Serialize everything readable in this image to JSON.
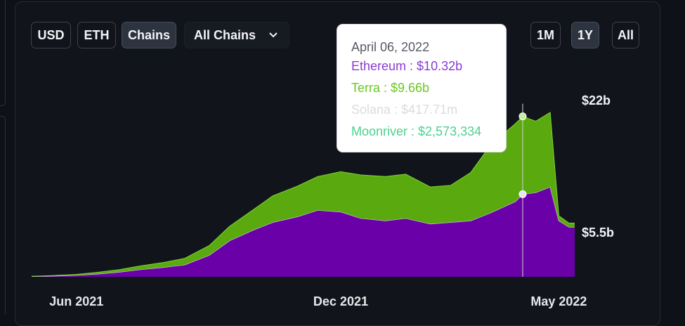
{
  "controls": {
    "currency_buttons": [
      "USD",
      "ETH",
      "Chains"
    ],
    "active_currency": "Chains",
    "chain_select": "All Chains",
    "range_buttons": [
      "1M",
      "1Y",
      "All"
    ],
    "active_range": "1Y"
  },
  "tooltip": {
    "date": "April 06, 2022",
    "lines": [
      {
        "series": "Ethereum",
        "text": "Ethereum : $10.32b",
        "color": "#8a3bd1"
      },
      {
        "series": "Terra",
        "text": "Terra : $9.66b",
        "color": "#6cc623"
      },
      {
        "series": "Solana",
        "text": "Solana : $417.71m",
        "color": "#dcdcdc"
      },
      {
        "series": "Moonriver",
        "text": "Moonriver : $2,573,334",
        "color": "#4dd18e"
      }
    ]
  },
  "chart_data": {
    "type": "area",
    "stacked": true,
    "x_tick_labels": [
      "Jun 2021",
      "Dec 2021",
      "May 2022"
    ],
    "y_tick_labels": [
      "$22b",
      "$5.5b"
    ],
    "y_axis_side": "right",
    "grid": false,
    "hover_date": "2022-04-06",
    "colors": {
      "Ethereum": "#6a00a8",
      "Terra": "#5aaa0f"
    },
    "x": [
      "2021-05-01",
      "2021-05-15",
      "2021-06-01",
      "2021-06-15",
      "2021-07-01",
      "2021-07-15",
      "2021-08-01",
      "2021-08-15",
      "2021-09-01",
      "2021-09-15",
      "2021-10-01",
      "2021-10-15",
      "2021-11-01",
      "2021-11-15",
      "2021-12-01",
      "2021-12-15",
      "2022-01-01",
      "2022-01-15",
      "2022-02-01",
      "2022-02-15",
      "2022-03-01",
      "2022-03-15",
      "2022-04-01",
      "2022-04-06",
      "2022-04-15",
      "2022-04-25",
      "2022-05-01",
      "2022-05-08",
      "2022-05-12"
    ],
    "series": [
      {
        "name": "Ethereum",
        "values": [
          0.05,
          0.1,
          0.2,
          0.35,
          0.6,
          0.9,
          1.2,
          1.5,
          2.7,
          4.5,
          5.8,
          6.8,
          7.5,
          8.3,
          8.1,
          7.3,
          7.0,
          7.3,
          6.6,
          6.8,
          7.0,
          8.0,
          9.4,
          10.3,
          10.5,
          11.2,
          7.0,
          6.2,
          6.2
        ]
      },
      {
        "name": "Terra",
        "values": [
          0.02,
          0.05,
          0.1,
          0.2,
          0.3,
          0.45,
          0.6,
          0.8,
          1.2,
          1.8,
          2.5,
          3.3,
          3.8,
          4.2,
          5.0,
          5.4,
          5.5,
          5.5,
          4.6,
          4.6,
          6.0,
          8.5,
          9.7,
          9.7,
          8.9,
          9.3,
          0.6,
          0.5,
          0.5
        ]
      }
    ]
  }
}
